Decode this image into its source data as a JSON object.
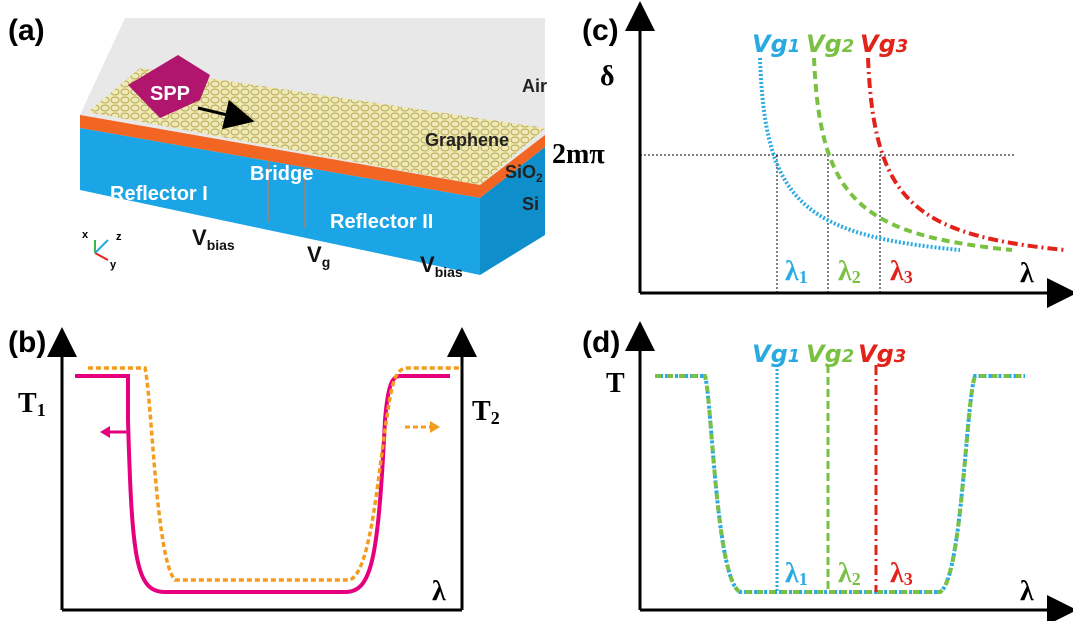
{
  "panel_a": {
    "label": "(a)",
    "spp": "SPP",
    "air": "Air",
    "graphene": "Graphene",
    "sio2": {
      "base": "SiO",
      "sub": "2"
    },
    "si": "Si",
    "bridge": "Bridge",
    "reflector_1": "Reflector I",
    "reflector_2": "Reflector II",
    "vbias_left": {
      "base": "V",
      "sub": "bias"
    },
    "vg": {
      "base": "V",
      "sub": "g"
    },
    "vbias_right": {
      "base": "V",
      "sub": "bias"
    },
    "axes": {
      "x": "x",
      "y": "y",
      "z": "z"
    }
  },
  "panel_b": {
    "label": "(b)",
    "t1": {
      "base": "T",
      "sub": "1"
    },
    "t2": {
      "base": "T",
      "sub": "2"
    },
    "x_axis": "λ"
  },
  "panel_c": {
    "label": "(c)",
    "y_axis": "δ",
    "level": "2mπ",
    "x_axis": "λ",
    "gates": [
      {
        "base": "Vg",
        "sub": "1"
      },
      {
        "base": "Vg",
        "sub": "2"
      },
      {
        "base": "Vg",
        "sub": "3"
      }
    ],
    "wavelengths": [
      {
        "base": "λ",
        "sub": "1"
      },
      {
        "base": "λ",
        "sub": "2"
      },
      {
        "base": "λ",
        "sub": "3"
      }
    ]
  },
  "panel_d": {
    "label": "(d)",
    "y_axis": "T",
    "x_axis": "λ",
    "gates": [
      {
        "base": "Vg",
        "sub": "1"
      },
      {
        "base": "Vg",
        "sub": "2"
      },
      {
        "base": "Vg",
        "sub": "3"
      }
    ],
    "wavelengths": [
      {
        "base": "λ",
        "sub": "1"
      },
      {
        "base": "λ",
        "sub": "2"
      },
      {
        "base": "λ",
        "sub": "3"
      }
    ]
  }
}
